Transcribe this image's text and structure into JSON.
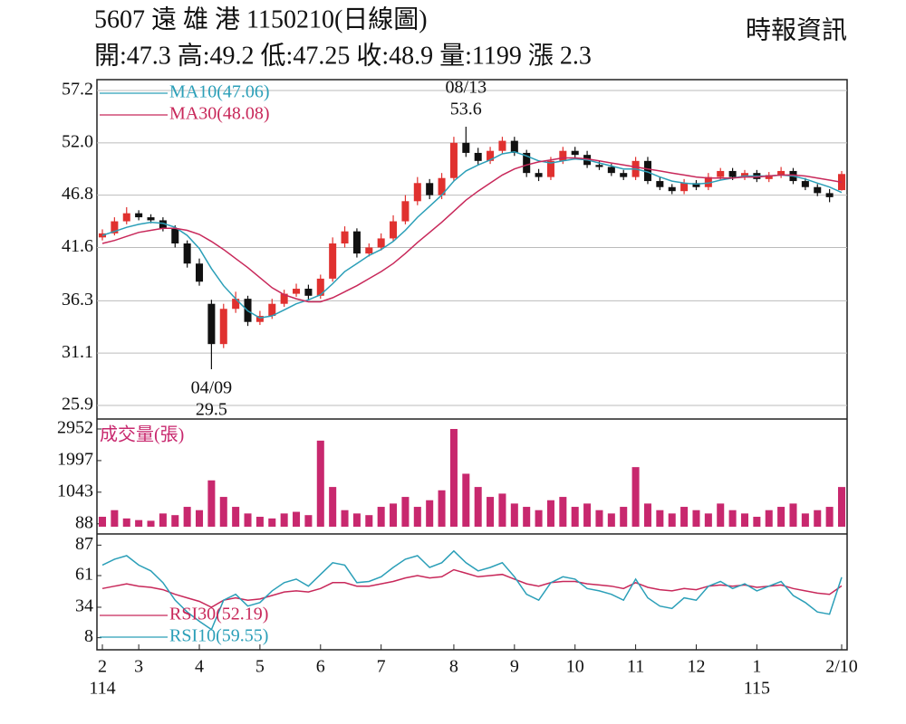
{
  "header": {
    "title": "5607  遠 雄 港 1150210(日線圖)",
    "quote": "開:47.3 高:49.2 低:47.25 收:48.9 量:1199 漲 2.3",
    "source": "時報資訊"
  },
  "chart_data": [
    {
      "type": "candlestick",
      "up_color": "#e0312f",
      "down_color": "#111111",
      "ylim": [
        25.9,
        57.2
      ],
      "yticks": [
        57.2,
        {
          "value": 52,
          "label": "52.0"
        },
        46.8,
        41.6,
        36.3,
        31.1,
        25.9
      ],
      "grid": true,
      "legend": "upper left",
      "open": [
        42.6,
        43.0,
        44.2,
        45.0,
        44.6,
        44.3,
        43.5,
        42.0,
        40.0,
        36.0,
        32.0,
        35.5,
        36.5,
        34.2,
        34.8,
        36.0,
        37.0,
        37.5,
        36.8,
        38.5,
        42.0,
        43.2,
        41.0,
        41.6,
        42.5,
        44.2,
        46.2,
        48.0,
        46.8,
        48.5,
        52.0,
        51.0,
        50.2,
        51.2,
        52.2,
        51.0,
        49.0,
        48.6,
        50.2,
        51.2,
        50.8,
        49.8,
        49.6,
        49.0,
        48.6,
        50.2,
        48.2,
        47.6,
        47.2,
        48.0,
        47.6,
        48.6,
        49.2,
        48.6,
        49.0,
        48.4,
        48.8,
        49.2,
        48.2,
        47.6,
        47.0,
        47.3
      ],
      "high": [
        43.4,
        44.6,
        45.6,
        45.3,
        44.9,
        44.6,
        43.8,
        42.3,
        40.5,
        36.4,
        36.0,
        37.2,
        36.8,
        35.3,
        36.5,
        37.4,
        38.0,
        37.9,
        38.9,
        42.6,
        43.7,
        43.5,
        42.0,
        43.0,
        44.8,
        46.8,
        48.6,
        48.4,
        49.0,
        52.6,
        53.6,
        51.5,
        51.6,
        52.6,
        52.6,
        51.3,
        49.4,
        50.6,
        51.6,
        51.6,
        51.2,
        50.2,
        49.9,
        49.3,
        50.6,
        50.6,
        48.6,
        47.9,
        48.4,
        48.3,
        49.0,
        49.5,
        49.5,
        49.3,
        49.3,
        49.1,
        49.6,
        49.5,
        48.5,
        47.9,
        47.4,
        49.2
      ],
      "low": [
        42.3,
        42.8,
        43.9,
        44.3,
        44.0,
        43.2,
        41.6,
        39.6,
        37.8,
        29.5,
        31.6,
        35.1,
        33.8,
        33.9,
        34.5,
        35.7,
        36.7,
        36.4,
        36.5,
        38.2,
        41.6,
        40.6,
        40.7,
        41.3,
        42.2,
        43.9,
        45.8,
        46.4,
        46.4,
        48.2,
        50.6,
        49.8,
        49.9,
        50.9,
        50.7,
        48.6,
        48.2,
        48.3,
        49.9,
        50.5,
        49.5,
        49.3,
        48.7,
        48.3,
        48.3,
        47.9,
        47.3,
        46.9,
        46.9,
        47.3,
        47.3,
        48.3,
        48.3,
        48.3,
        48.1,
        48.1,
        48.5,
        47.9,
        47.3,
        46.7,
        46.1,
        47.25
      ],
      "close": [
        43.0,
        44.2,
        45.0,
        44.6,
        44.3,
        43.5,
        42.0,
        40.0,
        38.2,
        32.0,
        35.5,
        36.5,
        34.2,
        34.8,
        36.0,
        37.0,
        37.5,
        36.8,
        38.5,
        42.0,
        43.2,
        41.0,
        41.6,
        42.5,
        44.2,
        46.2,
        48.0,
        46.8,
        48.5,
        52.0,
        51.0,
        50.2,
        51.2,
        52.2,
        51.0,
        49.0,
        48.6,
        50.2,
        51.2,
        50.8,
        49.8,
        49.6,
        49.0,
        48.6,
        50.2,
        48.2,
        47.6,
        47.2,
        48.0,
        47.6,
        48.6,
        49.2,
        48.6,
        49.0,
        48.4,
        48.8,
        49.2,
        48.2,
        47.6,
        47.0,
        46.6,
        48.9
      ],
      "series": [
        {
          "name": "MA10(47.06)",
          "color": "#2b9fb8",
          "values": [
            42.8,
            43.2,
            43.6,
            43.9,
            44.1,
            44.0,
            43.6,
            42.8,
            41.5,
            39.5,
            37.8,
            36.5,
            35.3,
            34.6,
            34.8,
            35.4,
            36.0,
            36.4,
            36.9,
            38.0,
            39.2,
            40.0,
            40.8,
            41.4,
            42.2,
            43.3,
            44.6,
            45.7,
            46.8,
            48.2,
            49.2,
            49.8,
            50.3,
            50.9,
            51.1,
            50.7,
            50.2,
            50.0,
            50.2,
            50.4,
            50.3,
            50.0,
            49.7,
            49.4,
            49.4,
            49.1,
            48.6,
            48.2,
            48.0,
            47.9,
            48.0,
            48.3,
            48.5,
            48.7,
            48.7,
            48.7,
            48.8,
            48.7,
            48.4,
            48.0,
            47.6,
            47.06
          ]
        },
        {
          "name": "MA30(48.08)",
          "color": "#c8285a",
          "values": [
            42.0,
            42.3,
            42.7,
            43.1,
            43.3,
            43.5,
            43.5,
            43.3,
            42.9,
            42.2,
            41.4,
            40.5,
            39.6,
            38.6,
            37.6,
            36.9,
            36.5,
            36.2,
            36.2,
            36.6,
            37.2,
            37.8,
            38.5,
            39.2,
            40.0,
            41.0,
            42.1,
            43.1,
            44.1,
            45.2,
            46.3,
            47.2,
            48.0,
            48.8,
            49.4,
            49.8,
            50.1,
            50.3,
            50.5,
            50.5,
            50.4,
            50.2,
            50.0,
            49.8,
            49.6,
            49.4,
            49.2,
            49.0,
            48.8,
            48.6,
            48.5,
            48.5,
            48.5,
            48.6,
            48.6,
            48.7,
            48.8,
            48.8,
            48.7,
            48.5,
            48.3,
            48.08
          ]
        }
      ],
      "annotations": [
        {
          "label": "08/13",
          "value": 53.6
        },
        {
          "label": "04/09",
          "value": 29.5
        }
      ]
    },
    {
      "type": "bar",
      "label": "成交量(張)",
      "color": "#c8286e",
      "ylim": [
        0,
        2952
      ],
      "yticks": [
        88,
        1043,
        1997,
        2952
      ],
      "grid": false,
      "values": [
        300,
        500,
        250,
        200,
        180,
        400,
        350,
        600,
        500,
        1400,
        900,
        600,
        400,
        300,
        250,
        400,
        450,
        350,
        2600,
        1200,
        500,
        400,
        350,
        600,
        700,
        900,
        600,
        800,
        1100,
        2952,
        1600,
        1200,
        900,
        1000,
        700,
        600,
        500,
        800,
        900,
        600,
        700,
        500,
        400,
        600,
        1800,
        700,
        500,
        400,
        600,
        500,
        400,
        700,
        500,
        400,
        300,
        500,
        600,
        700,
        400,
        500,
        600,
        1199
      ]
    },
    {
      "type": "line",
      "ylim": [
        0,
        95
      ],
      "yticks": [
        8,
        34,
        61,
        87
      ],
      "grid": false,
      "legend": "lower left",
      "categories": [
        "2",
        null,
        null,
        "3",
        null,
        null,
        null,
        null,
        "4",
        null,
        null,
        null,
        null,
        "5",
        null,
        null,
        null,
        null,
        "6",
        null,
        null,
        null,
        null,
        "7",
        null,
        null,
        null,
        null,
        null,
        "8",
        null,
        null,
        null,
        null,
        "9",
        null,
        null,
        null,
        null,
        "10",
        null,
        null,
        null,
        null,
        "11",
        null,
        null,
        null,
        null,
        "12",
        null,
        null,
        null,
        null,
        "1",
        null,
        null,
        null,
        null,
        null,
        null,
        "2/10"
      ],
      "category_years": [
        "114",
        null,
        null,
        null,
        null,
        null,
        null,
        null,
        null,
        null,
        null,
        null,
        null,
        null,
        null,
        null,
        null,
        null,
        null,
        null,
        null,
        null,
        null,
        null,
        null,
        null,
        null,
        null,
        null,
        null,
        null,
        null,
        null,
        null,
        null,
        null,
        null,
        null,
        null,
        null,
        null,
        null,
        null,
        null,
        null,
        null,
        null,
        null,
        null,
        null,
        null,
        null,
        null,
        null,
        "115",
        null,
        null,
        null,
        null,
        null,
        null,
        null
      ],
      "series": [
        {
          "name": "RSI30(52.19)",
          "color": "#c8285a",
          "values": [
            50,
            52,
            54,
            52,
            51,
            49,
            45,
            42,
            39,
            34,
            40,
            42,
            40,
            41,
            44,
            47,
            48,
            47,
            50,
            55,
            55,
            52,
            52,
            54,
            56,
            59,
            61,
            59,
            60,
            66,
            63,
            60,
            61,
            62,
            58,
            54,
            52,
            55,
            56,
            56,
            54,
            53,
            52,
            50,
            55,
            51,
            49,
            48,
            50,
            49,
            52,
            53,
            52,
            53,
            51,
            52,
            53,
            50,
            48,
            46,
            45,
            52.19
          ]
        },
        {
          "name": "RSI10(59.55)",
          "color": "#2b9fb8",
          "values": [
            70,
            75,
            78,
            70,
            65,
            55,
            40,
            30,
            22,
            15,
            40,
            45,
            35,
            38,
            48,
            55,
            58,
            52,
            62,
            72,
            70,
            55,
            56,
            60,
            68,
            75,
            78,
            68,
            72,
            82,
            72,
            65,
            68,
            72,
            60,
            45,
            40,
            55,
            60,
            58,
            50,
            48,
            45,
            40,
            58,
            42,
            35,
            33,
            42,
            40,
            52,
            56,
            50,
            54,
            48,
            52,
            56,
            44,
            38,
            30,
            28,
            59.55
          ]
        }
      ]
    }
  ]
}
